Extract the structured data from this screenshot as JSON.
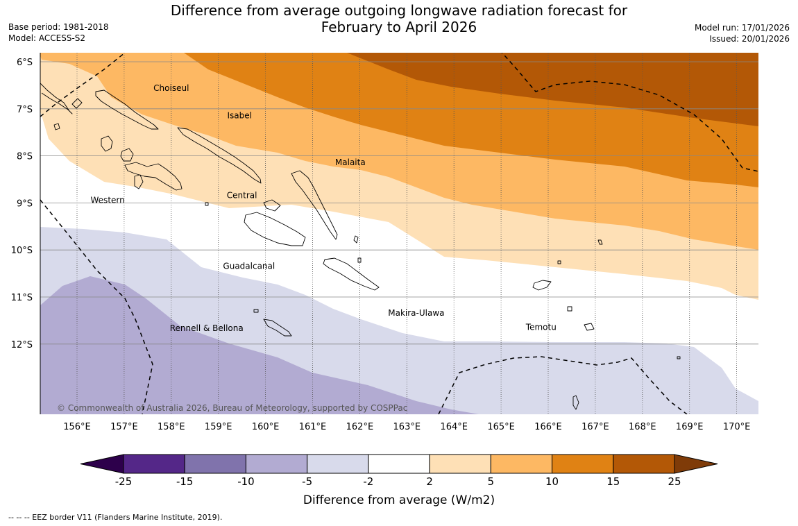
{
  "title": {
    "line1": "Difference from average outgoing longwave radiation forecast for",
    "line2": "February to April 2026"
  },
  "meta_left": {
    "base_period": "Base period: 1981-2018",
    "model": "Model: ACCESS-S2"
  },
  "meta_right": {
    "model_run": "Model run: 17/01/2026",
    "issued": "Issued: 20/01/2026"
  },
  "map": {
    "lat_labels": [
      "6°S",
      "7°S",
      "8°S",
      "9°S",
      "10°S",
      "11°S",
      "12°S"
    ],
    "lat_values": [
      -6,
      -7,
      -8,
      -9,
      -10,
      -11,
      -12
    ],
    "lon_labels": [
      "156°E",
      "157°E",
      "158°E",
      "159°E",
      "160°E",
      "161°E",
      "162°E",
      "163°E",
      "164°E",
      "165°E",
      "166°E",
      "167°E",
      "168°E",
      "169°E",
      "170°E"
    ],
    "lon_values": [
      156,
      157,
      158,
      159,
      160,
      161,
      162,
      163,
      164,
      165,
      166,
      167,
      168,
      169,
      170
    ],
    "provinces": [
      {
        "name": "Choiseul",
        "lon": 158.0,
        "lat": -6.62
      },
      {
        "name": "Isabel",
        "lon": 159.45,
        "lat": -7.2
      },
      {
        "name": "Malaita",
        "lon": 161.8,
        "lat": -8.2
      },
      {
        "name": "Western",
        "lon": 156.65,
        "lat": -9.0
      },
      {
        "name": "Central",
        "lon": 159.5,
        "lat": -8.9
      },
      {
        "name": "Guadalcanal",
        "lon": 159.65,
        "lat": -10.4
      },
      {
        "name": "Makira-Ulawa",
        "lon": 163.2,
        "lat": -11.4
      },
      {
        "name": "Temotu",
        "lon": 165.85,
        "lat": -11.7
      },
      {
        "name": "Rennell & Bellona",
        "lon": 158.75,
        "lat": -11.72
      }
    ],
    "copyright": "© Commonwealth of Australia 2026, Bureau of Meteorology, supported by COSPPac"
  },
  "colorbar": {
    "ticks": [
      "-25",
      "-15",
      "-10",
      "-5",
      "-2",
      "2",
      "5",
      "10",
      "15",
      "25"
    ],
    "colors": [
      "#542788",
      "#8073ac",
      "#b2abd2",
      "#d8daeb",
      "#ffffff",
      "#fee0b6",
      "#fdb863",
      "#e08214",
      "#b35806"
    ],
    "under_color": "#2d004b",
    "over_color": "#7f3b08",
    "label": "Difference from average (W/m2)"
  },
  "footnote": "--  --  -- EEZ border V11 (Flanders Marine Institute, 2019)."
}
